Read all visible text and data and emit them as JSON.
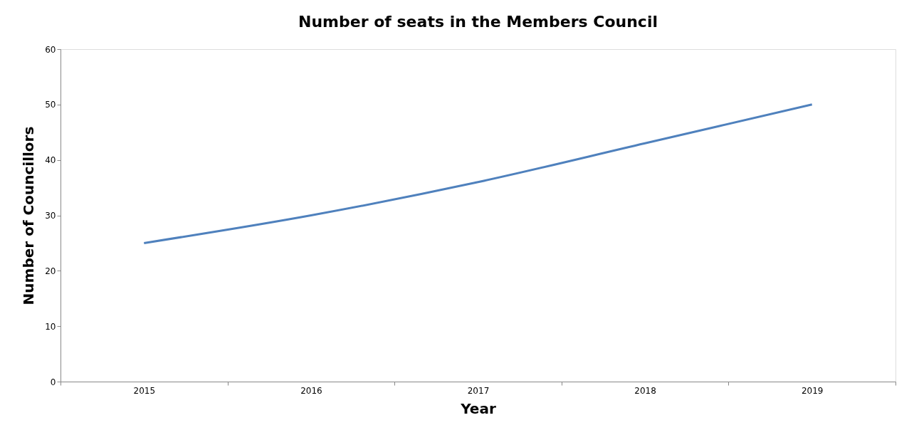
{
  "chart_data": {
    "type": "line",
    "title": "Number of seats in the Members Council",
    "xlabel": "Year",
    "ylabel": "Number of Councillors",
    "categories": [
      "2015",
      "2016",
      "2017",
      "2018",
      "2019"
    ],
    "series": [
      {
        "color": "#4f81bd",
        "values": [
          25,
          30,
          36,
          43,
          50
        ]
      }
    ],
    "ylim": [
      0,
      60
    ],
    "yticks": [
      0,
      10,
      20,
      30,
      40,
      50,
      60
    ],
    "grid": false,
    "marker": "none",
    "line_style": "solid"
  }
}
